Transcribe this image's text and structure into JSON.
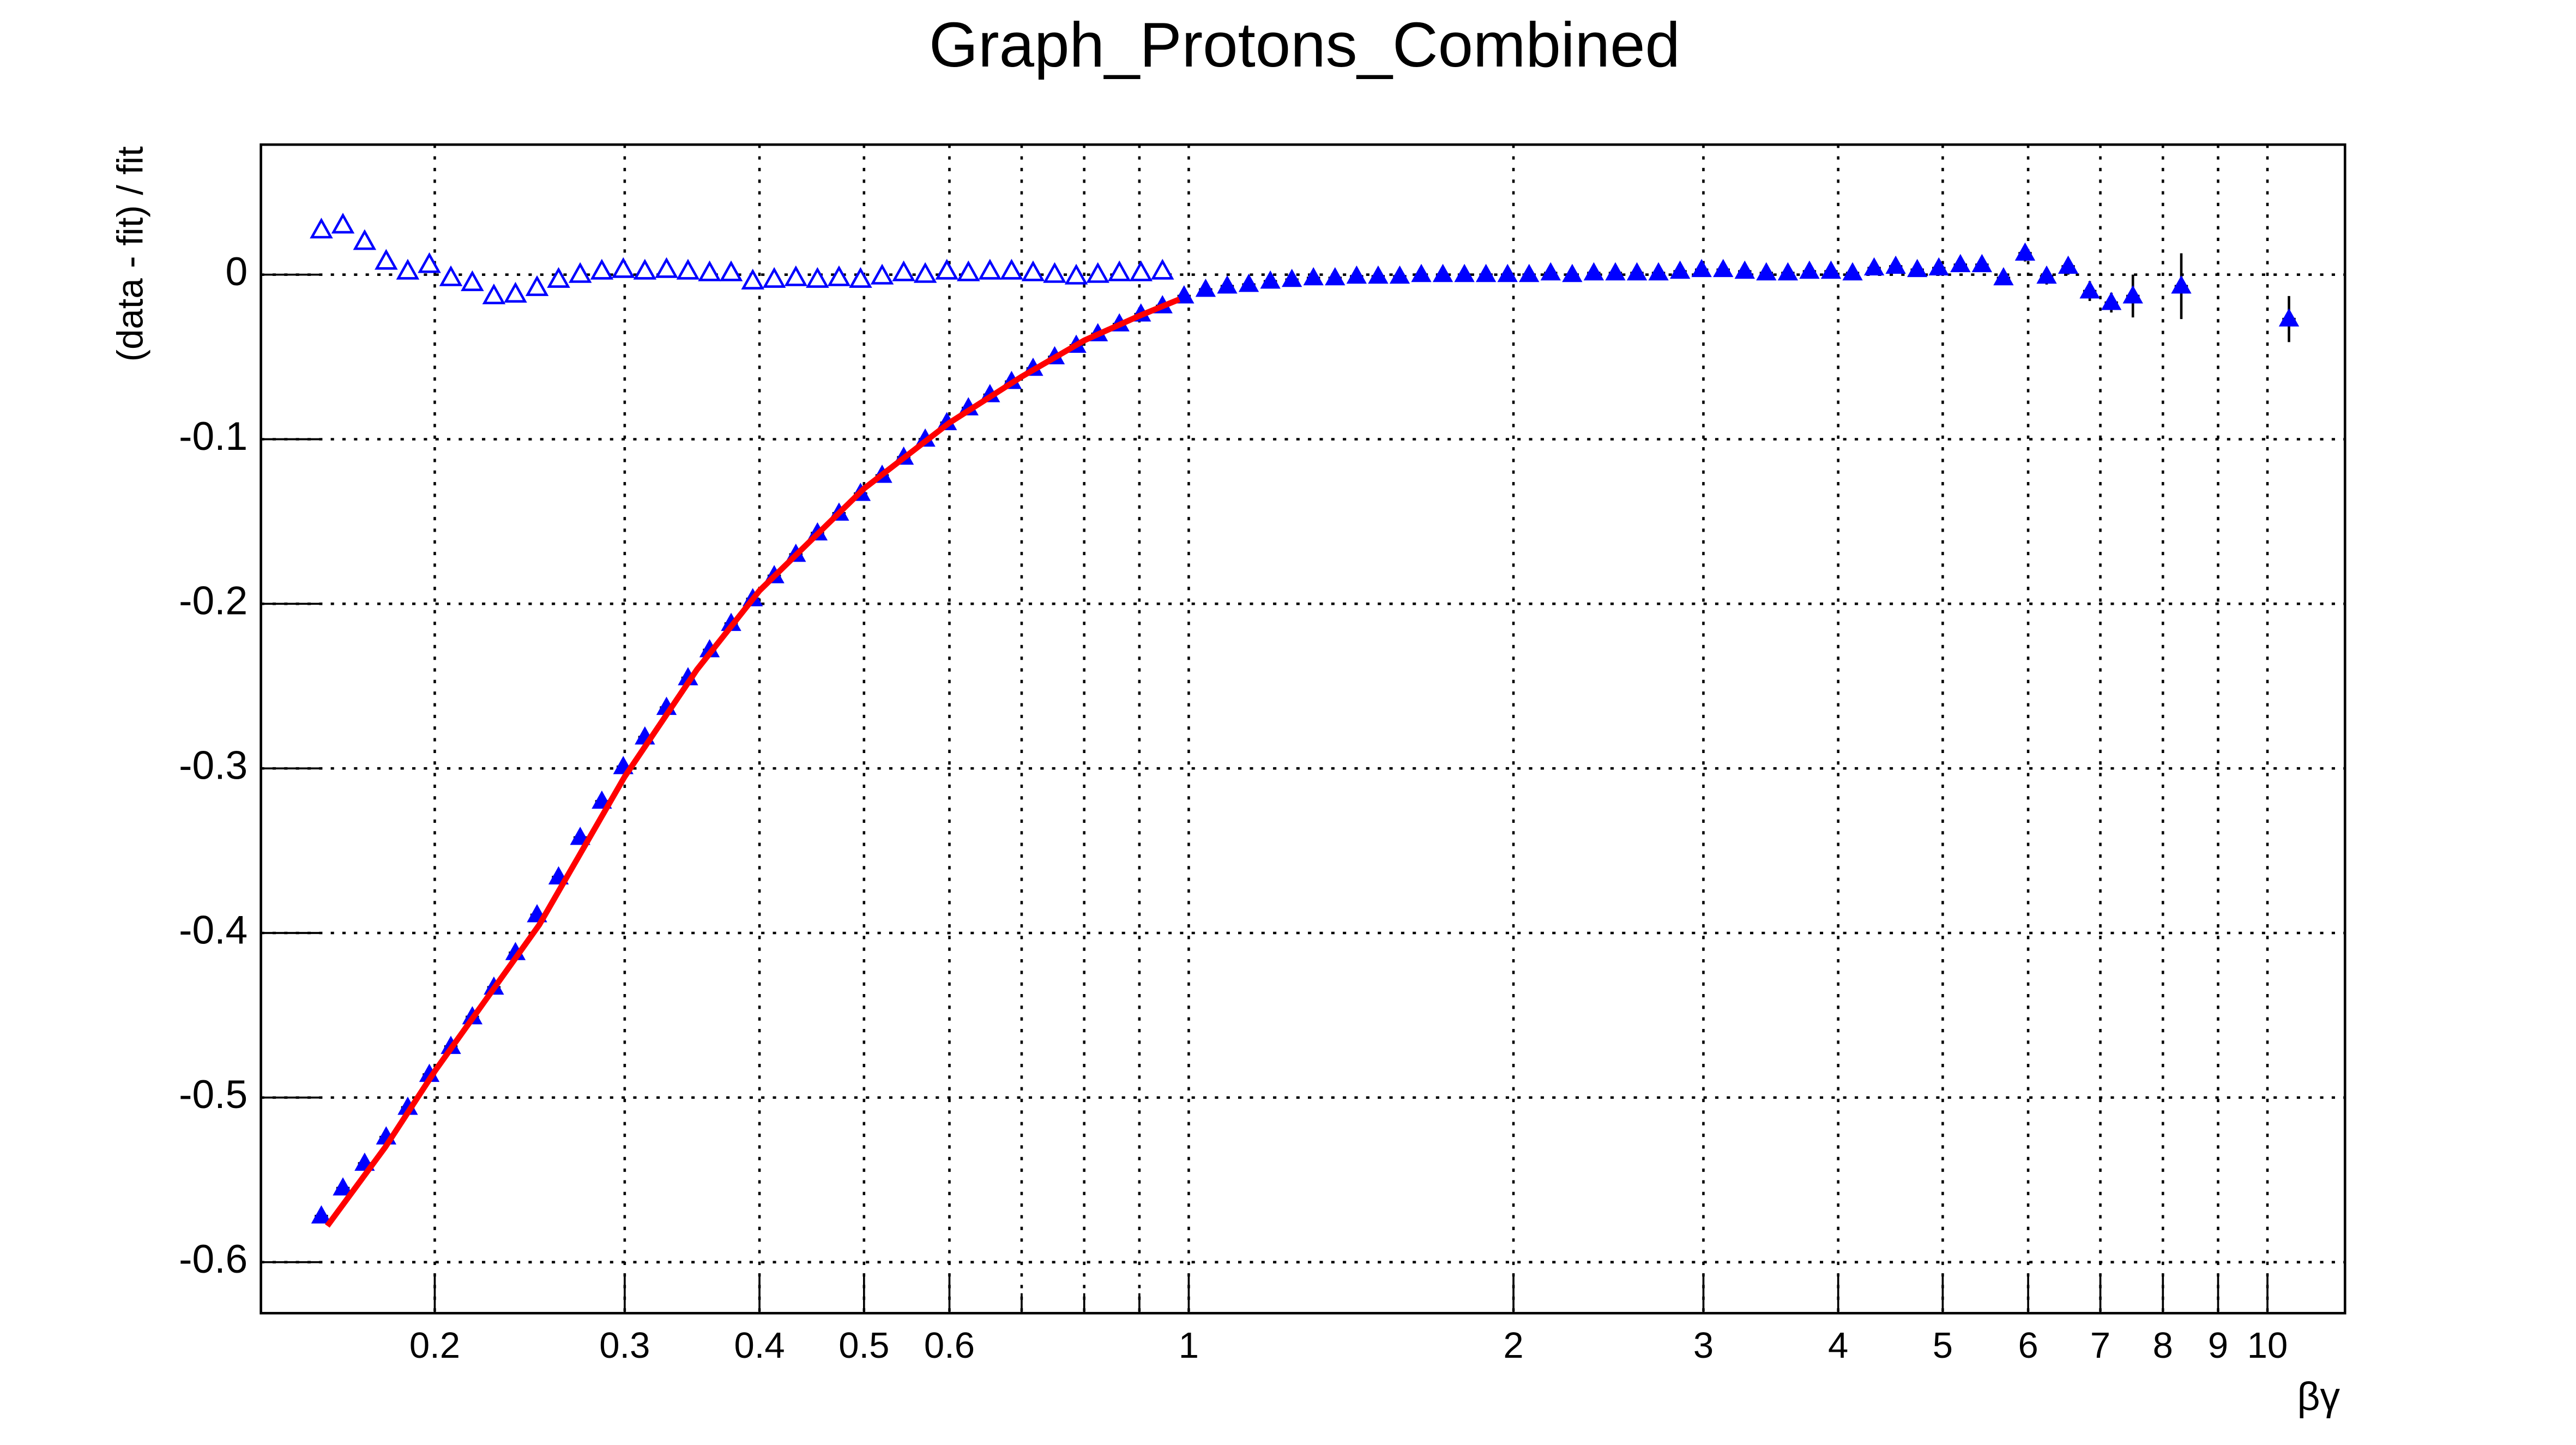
{
  "chart_data": {
    "type": "scatter",
    "title": "Graph_Protons_Combined",
    "x_label": "βγ",
    "y_label": "(data - fit) / fit",
    "xscale": "log",
    "grid": true,
    "xlim": [
      0.138,
      11.8
    ],
    "ylim": [
      -0.631,
      0.079
    ],
    "xticks": [
      0.2,
      0.3,
      0.4,
      0.5,
      0.6,
      {
        "value": 0.7,
        "label": null
      },
      {
        "value": 0.8,
        "label": null
      },
      {
        "value": 0.9,
        "label": null
      },
      1,
      2,
      3,
      4,
      5,
      6,
      7,
      8,
      9,
      10
    ],
    "yticks": [
      0,
      -0.1,
      -0.2,
      -0.3,
      -0.4,
      -0.5,
      -0.6
    ],
    "series": [
      {
        "color": "#0000ff",
        "marker": "triangle-open",
        "x": [
          0.157,
          0.1644,
          0.1722,
          0.1803,
          0.1888,
          0.1977,
          0.207,
          0.2167,
          0.2269,
          0.2376,
          0.2488,
          0.2605,
          0.2728,
          0.2857,
          0.2991,
          0.3132,
          0.328,
          0.3434,
          0.3596,
          0.3765,
          0.3943,
          0.4128,
          0.4323,
          0.4527,
          0.474,
          0.4963,
          0.5197,
          0.5442,
          0.5698,
          0.5967,
          0.6248,
          0.6542,
          0.6851,
          0.7173,
          0.7511,
          0.7865,
          0.8236,
          0.8624,
          0.903,
          0.9455
        ],
        "values": [
          0.027,
          0.03,
          0.02,
          0.008,
          0.002,
          0.006,
          -0.002,
          -0.005,
          -0.013,
          -0.012,
          -0.008,
          -0.003,
          0.0,
          0.002,
          0.003,
          0.002,
          0.003,
          0.002,
          0.001,
          0.001,
          -0.004,
          -0.003,
          -0.002,
          -0.003,
          -0.002,
          -0.003,
          -0.001,
          0.001,
          0.0,
          0.002,
          0.001,
          0.002,
          0.002,
          0.001,
          0.0,
          -0.001,
          0.0,
          0.001,
          0.001,
          0.002
        ]
      },
      {
        "color": "#0000ff",
        "marker": "triangle",
        "x": [
          0.157,
          0.1644,
          0.1722,
          0.1803,
          0.1888,
          0.1977,
          0.207,
          0.2167,
          0.2269,
          0.2376,
          0.2488,
          0.2605,
          0.2728,
          0.2857,
          0.2991,
          0.3132,
          0.328,
          0.3434,
          0.3596,
          0.3765,
          0.3943,
          0.4128,
          0.4323,
          0.4527,
          0.474,
          0.4963,
          0.5197,
          0.5442,
          0.5698,
          0.5967,
          0.6248,
          0.6542,
          0.6851,
          0.7173,
          0.7511,
          0.7865,
          0.8236,
          0.8624,
          0.903,
          0.9455,
          0.9901,
          1.0367,
          1.0856,
          1.1367,
          1.1903,
          1.2463,
          1.305,
          1.3665,
          1.4309,
          1.4983,
          1.5689,
          1.6428,
          1.7202,
          1.8012,
          1.886,
          1.9749,
          2.0679,
          2.1653,
          2.2673,
          2.3741,
          2.486,
          2.6031,
          2.7257,
          2.8541,
          2.9885,
          3.1293,
          3.2767,
          3.4311,
          3.5927,
          3.7619,
          3.9391,
          4.1247,
          4.319,
          4.5224,
          4.7354,
          4.9585,
          5.192,
          5.4366,
          5.6927,
          5.9608,
          6.2416,
          6.5356,
          6.8435,
          7.1658,
          7.5034,
          8.32,
          10.47
        ],
        "values": [
          -0.572,
          -0.555,
          -0.54,
          -0.524,
          -0.506,
          -0.486,
          -0.469,
          -0.451,
          -0.433,
          -0.412,
          -0.389,
          -0.366,
          -0.342,
          -0.32,
          -0.299,
          -0.281,
          -0.263,
          -0.245,
          -0.228,
          -0.212,
          -0.197,
          -0.183,
          -0.17,
          -0.157,
          -0.145,
          -0.133,
          -0.122,
          -0.111,
          -0.1,
          -0.09,
          -0.081,
          -0.073,
          -0.065,
          -0.057,
          -0.05,
          -0.043,
          -0.036,
          -0.03,
          -0.024,
          -0.019,
          -0.013,
          -0.009,
          -0.007,
          -0.006,
          -0.004,
          -0.003,
          -0.002,
          -0.002,
          -0.001,
          -0.001,
          -0.001,
          0,
          0,
          0,
          0,
          0,
          0,
          0.001,
          0,
          0.001,
          0.001,
          0.001,
          0.001,
          0.002,
          0.003,
          0.003,
          0.002,
          0.001,
          0.001,
          0.002,
          0.002,
          0.001,
          0.004,
          0.005,
          0.003,
          0.004,
          0.006,
          0.006,
          -0.002,
          0.013,
          -0.001,
          0.005,
          -0.01,
          -0.017,
          -0.013,
          -0.007,
          -0.027
        ],
        "errors": [
          0.003,
          0.003,
          0.003,
          0.003,
          0.003,
          0.003,
          0.003,
          0.003,
          0.003,
          0.003,
          0.003,
          0.003,
          0.003,
          0.003,
          0.003,
          0.003,
          0.003,
          0.003,
          0.003,
          0.003,
          0.003,
          0.003,
          0.003,
          0.003,
          0.003,
          0.003,
          0.003,
          0.003,
          0.003,
          0.003,
          0.003,
          0.003,
          0.003,
          0.003,
          0.003,
          0.003,
          0.003,
          0.003,
          0.003,
          0.003,
          0.003,
          0.002,
          0.002,
          0.002,
          0.002,
          0.002,
          0.002,
          0.002,
          0.002,
          0.002,
          0.002,
          0.002,
          0.002,
          0.002,
          0.002,
          0.002,
          0.002,
          0.002,
          0.002,
          0.002,
          0.002,
          0.002,
          0.002,
          0.002,
          0.002,
          0.002,
          0.002,
          0.002,
          0.002,
          0.002,
          0.002,
          0.002,
          0.002,
          0.003,
          0.003,
          0.003,
          0.003,
          0.003,
          0.004,
          0.005,
          0.005,
          0.005,
          0.006,
          0.006,
          0.013,
          0.02,
          0.014
        ]
      },
      {
        "color": "#ff0000",
        "marker": "line",
        "x": [
          0.159,
          0.18,
          0.2,
          0.25,
          0.3,
          0.35,
          0.4,
          0.5,
          0.6,
          0.7,
          0.8,
          0.9,
          0.98
        ],
        "values": [
          -0.578,
          -0.53,
          -0.484,
          -0.395,
          -0.305,
          -0.24,
          -0.192,
          -0.13,
          -0.09,
          -0.062,
          -0.04,
          -0.025,
          -0.015
        ]
      }
    ]
  }
}
